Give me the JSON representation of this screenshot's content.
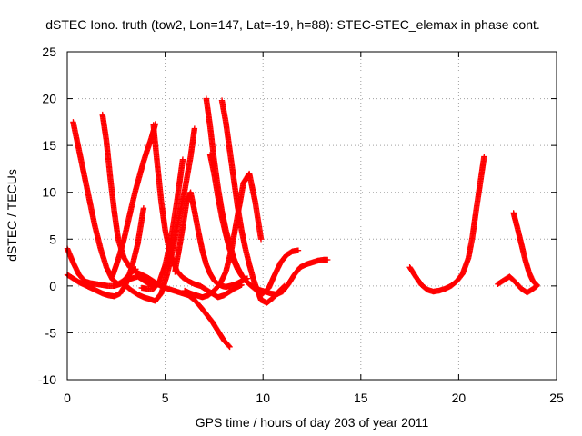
{
  "chart_data": {
    "type": "scatter",
    "title": "dSTEC Iono. truth (tow2, Lon=147, Lat=-19, h=88): STEC-STEC_elemax in phase cont.",
    "xlabel": "GPS time / hours of day 203 of year 2011",
    "ylabel": "dSTEC  / TECUs",
    "xlim": [
      0,
      25
    ],
    "ylim": [
      -10,
      25
    ],
    "xticks": [
      0,
      5,
      10,
      15,
      20,
      25
    ],
    "yticks": [
      -10,
      -5,
      0,
      5,
      10,
      15,
      20,
      25
    ],
    "grid": true,
    "marker": "+",
    "color": "#ff0000",
    "series": [
      {
        "x": [
          0.3,
          0.5,
          0.8,
          1.1,
          1.4,
          1.7,
          2.0,
          2.3,
          2.6,
          2.9,
          3.2,
          3.5
        ],
        "y": [
          17.5,
          15.5,
          12.5,
          9.5,
          6.5,
          4.0,
          2.0,
          0.7,
          0.2,
          0.6,
          1.3,
          1.8
        ]
      },
      {
        "x": [
          0.0,
          0.3,
          0.6,
          0.9,
          1.2,
          1.5,
          1.8,
          2.1,
          2.4,
          2.7,
          3.0,
          3.3,
          3.6,
          3.9,
          4.2,
          4.5
        ],
        "y": [
          4.0,
          2.5,
          1.2,
          0.5,
          0.3,
          0.2,
          0.1,
          0.0,
          0.0,
          0.2,
          0.5,
          0.8,
          1.0,
          0.6,
          0.2,
          0.0
        ]
      },
      {
        "x": [
          1.8,
          2.0,
          2.2,
          2.4,
          2.6,
          2.9,
          3.2,
          3.5,
          3.8,
          4.1,
          4.4,
          4.6,
          4.8,
          5.0,
          5.3,
          5.6,
          5.9,
          6.2,
          6.5,
          6.8,
          7.1,
          7.4,
          7.7,
          8.0,
          8.3
        ],
        "y": [
          18.3,
          15.5,
          11.5,
          8.0,
          5.0,
          3.0,
          2.0,
          1.5,
          1.2,
          0.9,
          0.5,
          0.2,
          0.0,
          -0.2,
          -0.4,
          -0.6,
          -0.8,
          -1.0,
          -1.5,
          -2.2,
          -3.0,
          -3.8,
          -4.8,
          -5.8,
          -6.5
        ]
      },
      {
        "x": [
          0.0,
          0.3,
          0.6,
          0.9,
          1.2,
          1.5,
          1.8,
          2.1,
          2.4,
          2.7,
          3.0,
          3.3,
          3.6,
          3.9
        ],
        "y": [
          1.2,
          0.8,
          0.4,
          0.1,
          -0.2,
          -0.5,
          -0.8,
          -1.0,
          -1.1,
          -0.8,
          0.2,
          2.0,
          4.5,
          8.3
        ]
      },
      {
        "x": [
          2.3,
          2.5,
          2.7,
          2.9,
          3.1,
          3.3,
          3.5,
          3.7,
          3.9,
          4.1,
          4.3,
          4.5
        ],
        "y": [
          1.0,
          2.2,
          3.5,
          5.0,
          6.8,
          8.6,
          10.3,
          11.8,
          13.3,
          14.6,
          15.8,
          17.3
        ]
      },
      {
        "x": [
          4.4,
          4.6,
          4.8,
          5.0,
          5.2,
          5.4,
          5.6,
          5.9,
          6.2,
          6.5,
          6.8,
          7.1,
          7.4,
          7.7,
          8.0,
          8.3,
          8.6,
          8.9
        ],
        "y": [
          17.2,
          13.0,
          9.0,
          6.0,
          4.0,
          2.6,
          1.6,
          0.9,
          0.5,
          0.2,
          0.0,
          -0.4,
          -0.8,
          -1.2,
          -1.0,
          -0.6,
          -0.2,
          0.1
        ]
      },
      {
        "x": [
          3.0,
          3.3,
          3.6,
          3.9,
          4.2,
          4.5,
          4.8,
          5.1,
          5.4,
          5.7,
          6.0,
          6.3,
          6.5
        ],
        "y": [
          0.0,
          -0.5,
          -0.9,
          -1.2,
          -1.4,
          -1.6,
          -0.8,
          1.2,
          4.0,
          7.2,
          10.2,
          13.8,
          16.8
        ]
      },
      {
        "x": [
          3.8,
          4.1,
          4.4,
          4.7,
          5.0,
          5.3,
          5.6,
          5.9
        ],
        "y": [
          -0.2,
          -0.3,
          -0.3,
          0.4,
          2.2,
          5.0,
          9.0,
          13.5
        ]
      },
      {
        "x": [
          5.5,
          5.7,
          5.9,
          6.1,
          6.3,
          6.5,
          6.7,
          6.9,
          7.1,
          7.3,
          7.5,
          7.7,
          7.9,
          8.1,
          8.3,
          8.6,
          8.9,
          9.2
        ],
        "y": [
          1.5,
          3.8,
          6.3,
          9.0,
          10.0,
          8.0,
          5.8,
          3.8,
          2.3,
          1.3,
          0.6,
          0.2,
          0.0,
          -0.1,
          0.0,
          0.2,
          0.5,
          0.8
        ]
      },
      {
        "x": [
          7.1,
          7.3,
          7.5,
          7.7,
          7.9,
          8.1,
          8.3,
          8.5,
          8.7,
          8.9,
          9.1,
          9.4,
          9.7,
          10.0,
          10.3,
          10.6,
          10.9,
          11.2,
          11.5,
          11.8
        ],
        "y": [
          20.0,
          17.0,
          13.5,
          10.5,
          8.0,
          6.0,
          4.5,
          3.0,
          2.0,
          1.2,
          0.6,
          0.0,
          -0.5,
          -0.8,
          -0.2,
          1.2,
          2.5,
          3.3,
          3.7,
          3.8
        ]
      },
      {
        "x": [
          7.3,
          7.5,
          7.7,
          7.9,
          8.1,
          8.3,
          8.5,
          8.7,
          8.9,
          9.1,
          9.3,
          9.5,
          9.8,
          10.1,
          10.4,
          10.7,
          11.0,
          11.3,
          11.6,
          11.9,
          12.2,
          12.5,
          12.8,
          13.1,
          13.3
        ],
        "y": [
          14.0,
          12.0,
          9.5,
          7.3,
          5.5,
          3.9,
          2.7,
          1.8,
          1.1,
          0.6,
          0.2,
          -0.1,
          -0.4,
          -0.6,
          -0.8,
          -0.9,
          -0.6,
          0.2,
          1.2,
          2.0,
          2.3,
          2.5,
          2.7,
          2.8,
          2.8
        ]
      },
      {
        "x": [
          7.9,
          8.1,
          8.3,
          8.5,
          8.7,
          8.9,
          9.1,
          9.3,
          9.5,
          9.7,
          9.9,
          10.2,
          10.5,
          10.8,
          11.1
        ],
        "y": [
          19.8,
          17.5,
          14.5,
          11.5,
          8.5,
          6.0,
          4.0,
          2.3,
          0.8,
          -0.4,
          -1.5,
          -1.8,
          -1.3,
          -0.6,
          0.0
        ]
      },
      {
        "x": [
          6.0,
          6.3,
          6.6,
          6.9,
          7.2,
          7.5,
          7.8,
          8.1,
          8.4,
          8.7,
          9.0,
          9.3,
          9.6,
          9.9
        ],
        "y": [
          -0.5,
          -0.8,
          -1.0,
          -1.2,
          -1.0,
          -0.5,
          0.2,
          1.5,
          4.0,
          7.5,
          11.0,
          12.0,
          9.0,
          5.0
        ]
      },
      {
        "x": [
          17.5,
          17.8,
          18.1,
          18.4,
          18.7,
          19.0,
          19.3,
          19.6,
          19.9,
          20.2,
          20.5,
          20.7,
          20.9,
          21.1,
          21.3
        ],
        "y": [
          2.0,
          1.0,
          0.1,
          -0.4,
          -0.6,
          -0.5,
          -0.3,
          0.0,
          0.5,
          1.3,
          3.0,
          5.2,
          8.2,
          11.0,
          13.8
        ]
      },
      {
        "x": [
          22.0,
          22.3,
          22.6,
          22.9,
          23.2,
          23.5,
          23.8,
          24.0
        ],
        "y": [
          0.2,
          0.6,
          1.0,
          0.4,
          -0.3,
          -0.7,
          -0.3,
          0.0
        ]
      },
      {
        "x": [
          22.8,
          23.0,
          23.2,
          23.4,
          23.6,
          23.8,
          24.0
        ],
        "y": [
          7.8,
          6.2,
          4.5,
          2.8,
          1.4,
          0.5,
          0.1
        ]
      }
    ]
  }
}
